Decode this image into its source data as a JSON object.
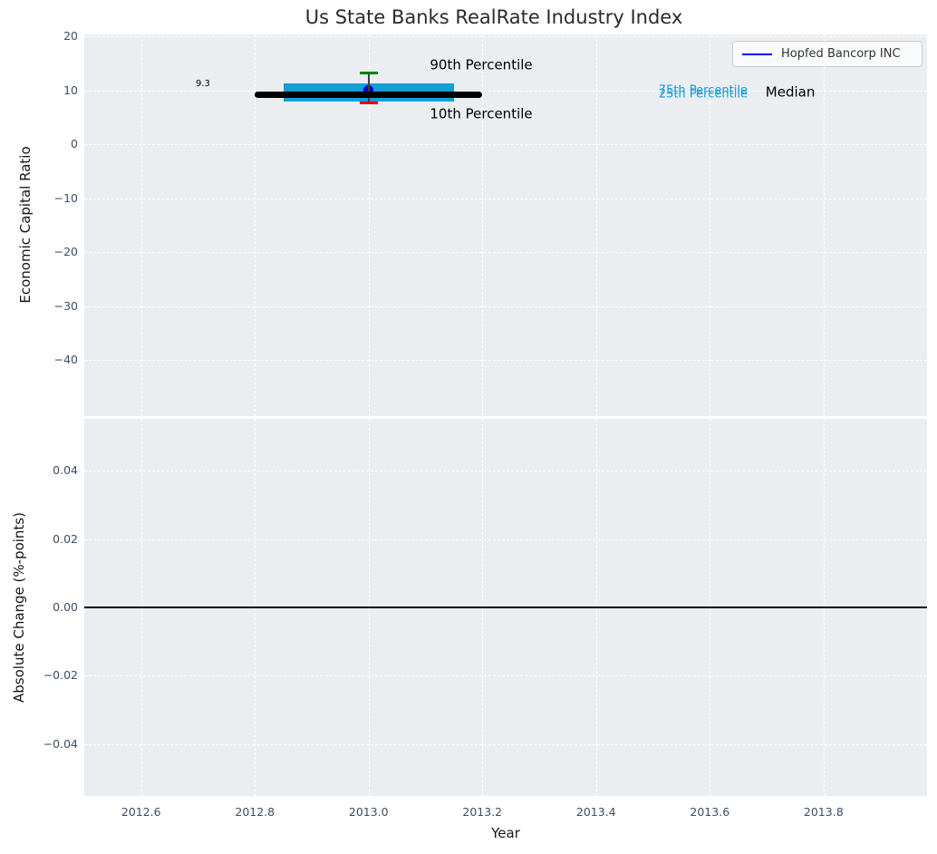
{
  "title": "Us State Banks RealRate Industry Index",
  "legend": {
    "label": "Hopfed Bancorp INC",
    "line_color": "#0000ee"
  },
  "colors": {
    "plot_bg": "#eaeef1",
    "grid": "#ffffff",
    "tick_label": "#3d4e63",
    "iqr_bar": "#149dd6",
    "median_line": "#000000",
    "p90_cap": "#008000",
    "p10_cap": "#e80000",
    "company_marker": "#0000cc",
    "whisker": "#3c3c3c",
    "zero_line": "#000000"
  },
  "chart_data": [
    {
      "type": "line",
      "title": "Us State Banks RealRate Industry Index",
      "ylabel": "Economic Capital Ratio",
      "xlim": [
        2012.5,
        2013.982
      ],
      "ylim": [
        -50.4,
        20.4
      ],
      "grid": true,
      "ytick_values": [
        20,
        10,
        0,
        -10,
        -20,
        -30,
        -40
      ],
      "ytick_labels": [
        "20",
        "10",
        "0",
        "−10",
        "−20",
        "−30",
        "−40"
      ],
      "xtick_values": [
        2012.6,
        2012.8,
        2013.0,
        2013.2,
        2013.4,
        2013.6,
        2013.8
      ],
      "xtick_labels_shown": false,
      "median": {
        "label": "9.3",
        "value": 9.3,
        "x_start": 2012.8,
        "x_end": 2013.2
      },
      "iqr_band": {
        "p25": 8.0,
        "p75": 11.4,
        "x_start": 2012.85,
        "x_end": 2013.15
      },
      "decile_whisker": {
        "x": 2013.0,
        "p10": 7.7,
        "p90": 13.3
      },
      "company_point": {
        "name": "Hopfed Bancorp INC",
        "x": 2013.0,
        "y": 10.0
      },
      "annotations": [
        {
          "text": "90th Percentile",
          "x": 2013.198,
          "y": 14.6,
          "size": 15,
          "color": "#000000",
          "anchor": "center"
        },
        {
          "text": "10th Percentile",
          "x": 2013.198,
          "y": 5.6,
          "size": 15,
          "color": "#000000",
          "anchor": "center"
        },
        {
          "text": "75th Percentile",
          "x": 2013.51,
          "y": 9.95,
          "size": 13,
          "color": "#149dd6",
          "anchor": "left"
        },
        {
          "text": "25th Percentile",
          "x": 2013.51,
          "y": 9.25,
          "size": 13,
          "color": "#149dd6",
          "anchor": "left"
        },
        {
          "text": "Median",
          "x": 2013.698,
          "y": 9.6,
          "size": 15,
          "color": "#000000",
          "anchor": "left"
        },
        {
          "text": "9.3",
          "x": 2012.696,
          "y": 11.2,
          "size": 10,
          "color": "#000000",
          "anchor": "left"
        }
      ]
    },
    {
      "type": "line",
      "ylabel": "Absolute Change (%-points)",
      "xlabel": "Year",
      "xlim": [
        2012.5,
        2013.982
      ],
      "ylim": [
        -0.0552,
        0.0552
      ],
      "grid": true,
      "ytick_values": [
        0.04,
        0.02,
        0.0,
        -0.02,
        -0.04
      ],
      "ytick_labels": [
        "0.04",
        "0.02",
        "0.00",
        "−0.02",
        "−0.04"
      ],
      "xtick_values": [
        2012.6,
        2012.8,
        2013.0,
        2013.2,
        2013.4,
        2013.6,
        2013.8
      ],
      "xtick_labels": [
        "2012.6",
        "2012.8",
        "2013.0",
        "2013.2",
        "2013.4",
        "2013.6",
        "2013.8"
      ],
      "xtick_labels_shown": true,
      "zero_line": 0.0
    }
  ]
}
